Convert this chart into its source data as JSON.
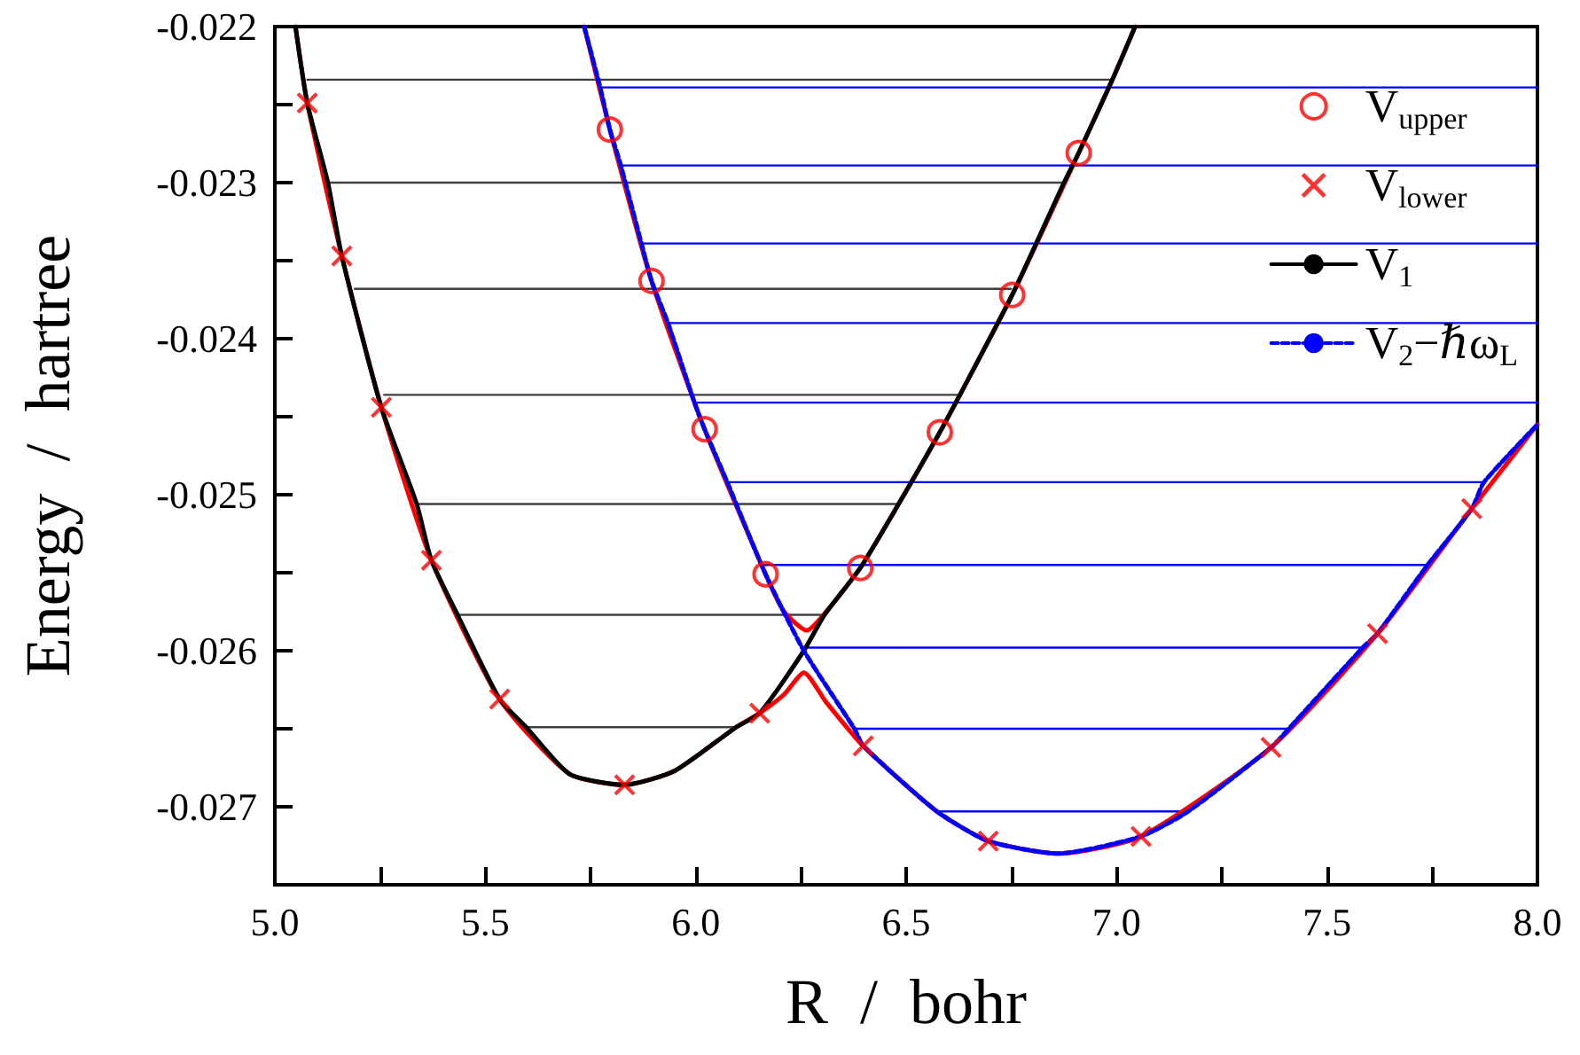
{
  "chart_data": {
    "type": "line",
    "xlabel": "R  /  bohr",
    "ylabel": "Energy  /  hartree",
    "xlim": [
      5,
      8
    ],
    "ylim": [
      -0.0275,
      -0.022
    ],
    "xticks": [
      {
        "value": 5,
        "label": "5.0"
      },
      {
        "value": 5.25,
        "label": null
      },
      {
        "value": 5.5,
        "label": "5.5"
      },
      {
        "value": 5.75,
        "label": null
      },
      {
        "value": 6,
        "label": "6.0"
      },
      {
        "value": 6.25,
        "label": null
      },
      {
        "value": 6.5,
        "label": "6.5"
      },
      {
        "value": 6.75,
        "label": null
      },
      {
        "value": 7,
        "label": "7.0"
      },
      {
        "value": 7.25,
        "label": null
      },
      {
        "value": 7.5,
        "label": "7.5"
      },
      {
        "value": 7.75,
        "label": null
      },
      {
        "value": 8,
        "label": "8.0"
      }
    ],
    "yticks": [
      {
        "value": -0.0275,
        "label": null
      },
      -0.027,
      {
        "value": -0.0265,
        "label": null
      },
      -0.026,
      {
        "value": -0.0255,
        "label": null
      },
      -0.025,
      {
        "value": -0.0245,
        "label": null
      },
      -0.024,
      {
        "value": -0.0235,
        "label": null
      },
      -0.023,
      {
        "value": -0.0225,
        "label": null
      },
      -0.022
    ],
    "grid": false,
    "legend": "top right",
    "series": [
      {
        "name": "V$_{upper}$",
        "type": "scatter",
        "marker": "circle",
        "color": "#ff0000",
        "x": [
          5.796,
          5.895,
          6.021,
          6.166,
          6.391,
          6.58,
          6.752,
          6.91
        ],
        "values": [
          -0.02266,
          -0.02363,
          -0.02458,
          -0.02551,
          -0.02547,
          -0.0246,
          -0.02372,
          -0.02281
        ]
      },
      {
        "name": "V$_{lower}$",
        "type": "scatter",
        "marker": "cross",
        "color": "#ff0000",
        "x": [
          5.077,
          5.159,
          5.253,
          5.372,
          5.534,
          5.831,
          6.152,
          6.398,
          6.695,
          7.058,
          7.367,
          7.62,
          7.844
        ],
        "values": [
          -0.02249,
          -0.02347,
          -0.02444,
          -0.02542,
          -0.02631,
          -0.02686,
          -0.0264,
          -0.02661,
          -0.02722,
          -0.02719,
          -0.02662,
          -0.02589,
          -0.02509
        ]
      },
      {
        "name": "V$_{1}$",
        "line_style": "solid",
        "color": "#000000",
        "x": [
          5.049,
          5.077,
          5.126,
          5.159,
          5.253,
          5.337,
          5.372,
          5.434,
          5.534,
          5.597,
          5.7,
          5.831,
          5.95,
          6.096,
          6.152,
          6.257,
          6.306,
          6.391,
          6.482,
          6.58,
          6.622,
          6.752,
          6.875,
          6.91,
          6.99,
          7.044
        ],
        "values": [
          -0.022,
          -0.02249,
          -0.023,
          -0.02347,
          -0.02444,
          -0.02506,
          -0.02542,
          -0.02577,
          -0.02631,
          -0.02649,
          -0.02679,
          -0.02686,
          -0.02677,
          -0.02649,
          -0.0264,
          -0.026,
          -0.02577,
          -0.02547,
          -0.02506,
          -0.0246,
          -0.02439,
          -0.02372,
          -0.023,
          -0.02281,
          -0.02234,
          -0.022
        ]
      },
      {
        "name": "V$_{2}$−ℏω$_{L}$",
        "line_style": "dashed",
        "color": "#0000ff",
        "x": [
          5.735,
          5.773,
          5.796,
          5.822,
          5.871,
          5.895,
          5.934,
          5.997,
          6.021,
          6.075,
          6.166,
          6.257,
          6.377,
          6.398,
          6.573,
          6.695,
          6.861,
          7.058,
          7.17,
          7.367,
          7.409,
          7.585,
          7.62,
          7.739,
          7.844,
          7.873,
          8.0
        ],
        "values": [
          -0.022,
          -0.02239,
          -0.02266,
          -0.02289,
          -0.02339,
          -0.02363,
          -0.0239,
          -0.02441,
          -0.02458,
          -0.02492,
          -0.02551,
          -0.026,
          -0.0265,
          -0.02661,
          -0.02703,
          -0.02722,
          -0.0273,
          -0.02719,
          -0.02703,
          -0.02662,
          -0.0265,
          -0.02598,
          -0.02589,
          -0.02545,
          -0.02509,
          -0.02492,
          -0.02455
        ]
      },
      {
        "line_style": "solid",
        "color": "#ff0000",
        "x": [
          5.735,
          5.796,
          5.895,
          6.021,
          6.166,
          6.21,
          6.264,
          6.31,
          6.391,
          6.482,
          6.58,
          6.752,
          6.91,
          6.99,
          7.044
        ],
        "values": [
          -0.022,
          -0.02266,
          -0.02363,
          -0.02458,
          -0.02551,
          -0.02575,
          -0.02587,
          -0.02575,
          -0.02547,
          -0.02506,
          -0.0246,
          -0.02372,
          -0.02281,
          -0.02234,
          -0.022
        ]
      },
      {
        "line_style": "solid",
        "color": "#ff0000",
        "x": [
          5.049,
          5.077,
          5.159,
          5.253,
          5.372,
          5.534,
          5.7,
          5.831,
          5.95,
          6.096,
          6.152,
          6.21,
          6.257,
          6.31,
          6.398,
          6.573,
          6.695,
          6.861,
          7.058,
          7.367,
          7.62,
          7.844,
          8.0
        ],
        "values": [
          -0.022,
          -0.02249,
          -0.02347,
          -0.02444,
          -0.02542,
          -0.02631,
          -0.02679,
          -0.02686,
          -0.02677,
          -0.02649,
          -0.0264,
          -0.02628,
          -0.02614,
          -0.02633,
          -0.02661,
          -0.02703,
          -0.02722,
          -0.0273,
          -0.02719,
          -0.02662,
          -0.02589,
          -0.02509,
          -0.02455
        ]
      },
      {
        "color": "#404040",
        "x": [
          5.077,
          6.99
        ],
        "values": [
          -0.02234,
          -0.02234
        ]
      },
      {
        "color": "#404040",
        "x": [
          5.126,
          6.875
        ],
        "values": [
          -0.023,
          -0.023
        ]
      },
      {
        "color": "#404040",
        "x": [
          5.19,
          6.749
        ],
        "values": [
          -0.02368,
          -0.02368
        ]
      },
      {
        "color": "#404040",
        "x": [
          5.26,
          6.622
        ],
        "values": [
          -0.02436,
          -0.02436
        ]
      },
      {
        "color": "#404040",
        "x": [
          5.337,
          6.482
        ],
        "values": [
          -0.02506,
          -0.02506
        ]
      },
      {
        "color": "#404040",
        "x": [
          5.434,
          6.306
        ],
        "values": [
          -0.02577,
          -0.02577
        ]
      },
      {
        "color": "#404040",
        "x": [
          5.597,
          6.096
        ],
        "values": [
          -0.02649,
          -0.02649
        ]
      },
      {
        "color": "#0000ff",
        "x": [
          5.773,
          8
        ],
        "values": [
          -0.02239,
          -0.02239
        ]
      },
      {
        "color": "#0000ff",
        "x": [
          5.822,
          8
        ],
        "values": [
          -0.02289,
          -0.02289
        ]
      },
      {
        "color": "#0000ff",
        "x": [
          5.871,
          8
        ],
        "values": [
          -0.02339,
          -0.02339
        ]
      },
      {
        "color": "#0000ff",
        "x": [
          5.934,
          8
        ],
        "values": [
          -0.0239,
          -0.0239
        ]
      },
      {
        "color": "#0000ff",
        "x": [
          5.997,
          8
        ],
        "values": [
          -0.02441,
          -0.02441
        ]
      },
      {
        "color": "#0000ff",
        "x": [
          6.075,
          7.873
        ],
        "values": [
          -0.02492,
          -0.02492
        ]
      },
      {
        "color": "#0000ff",
        "x": [
          6.157,
          7.739
        ],
        "values": [
          -0.02545,
          -0.02545
        ]
      },
      {
        "color": "#0000ff",
        "x": [
          6.257,
          7.585
        ],
        "values": [
          -0.02598,
          -0.02598
        ]
      },
      {
        "color": "#0000ff",
        "x": [
          6.377,
          7.409
        ],
        "values": [
          -0.0265,
          -0.0265
        ]
      },
      {
        "color": "#0000ff",
        "x": [
          6.573,
          7.17
        ],
        "values": [
          -0.02703,
          -0.02703
        ]
      }
    ]
  }
}
